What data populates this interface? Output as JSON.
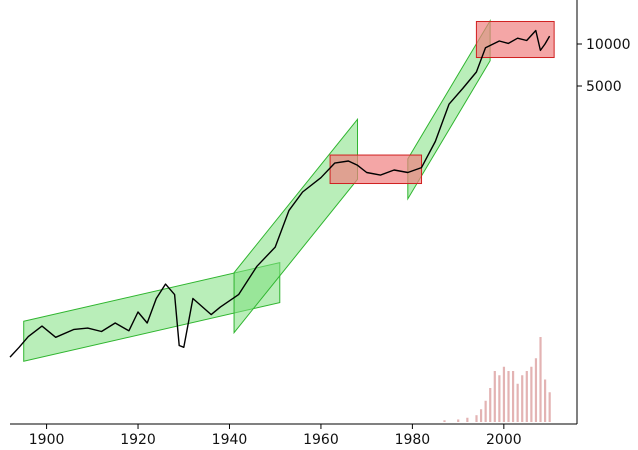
{
  "chart_data": {
    "type": "line",
    "title": "",
    "xlabel": "",
    "ylabel": "",
    "xlim": [
      1892,
      2016
    ],
    "x_ticks": [
      1900,
      1920,
      1940,
      1960,
      1980,
      2000
    ],
    "y_ticks": [
      {
        "label": "10000",
        "value": 10000
      },
      {
        "label": "5000",
        "value": 5000
      }
    ],
    "grid": false,
    "legend": "none",
    "colors": {
      "line": "#000000",
      "uptrend_fill": "#7fe07f",
      "uptrend_edge": "#2fb52f",
      "sideways_fill": "#f08080",
      "sideways_edge": "#d02020",
      "volume": "#e3b3b3",
      "axis": "#000000"
    },
    "series": [
      {
        "values": [
          [
            1892,
            57
          ],
          [
            1894,
            67
          ],
          [
            1896,
            80
          ],
          [
            1899,
            95
          ],
          [
            1902,
            79
          ],
          [
            1906,
            90
          ],
          [
            1909,
            92
          ],
          [
            1912,
            87
          ],
          [
            1915,
            100
          ],
          [
            1918,
            88
          ],
          [
            1920,
            120
          ],
          [
            1922,
            100
          ],
          [
            1924,
            150
          ],
          [
            1926,
            190
          ],
          [
            1928,
            160
          ],
          [
            1929,
            69
          ],
          [
            1930,
            67
          ],
          [
            1932,
            150
          ],
          [
            1936,
            115
          ],
          [
            1938,
            130
          ],
          [
            1942,
            160
          ],
          [
            1946,
            255
          ],
          [
            1950,
            350
          ],
          [
            1953,
            640
          ],
          [
            1956,
            870
          ],
          [
            1960,
            1100
          ],
          [
            1963,
            1400
          ],
          [
            1966,
            1450
          ],
          [
            1968,
            1350
          ],
          [
            1970,
            1200
          ],
          [
            1973,
            1150
          ],
          [
            1976,
            1250
          ],
          [
            1979,
            1200
          ],
          [
            1982,
            1300
          ],
          [
            1985,
            2000
          ],
          [
            1988,
            3700
          ],
          [
            1991,
            4800
          ],
          [
            1994,
            6300
          ],
          [
            1996,
            9400
          ],
          [
            1999,
            10500
          ],
          [
            2001,
            10100
          ],
          [
            2003,
            11000
          ],
          [
            2005,
            10600
          ],
          [
            2007,
            12500
          ],
          [
            2008,
            9000
          ],
          [
            2009,
            10000
          ],
          [
            2010,
            11400
          ]
        ]
      }
    ],
    "uptrend_channels": [
      {
        "start": [
          1895,
          74
        ],
        "end": [
          1951,
          195
        ],
        "width": 40
      },
      {
        "start": [
          1941,
          140
        ],
        "end": [
          1968,
          1760
        ],
        "width": 60
      },
      {
        "start": [
          1979,
          1080
        ],
        "end": [
          1997,
          10550
        ],
        "width": 40
      }
    ],
    "sideways_boxes": [
      {
        "x": [
          1962,
          1982
        ],
        "y": [
          1000,
          1600
        ]
      },
      {
        "x": [
          1994,
          2011
        ],
        "y": [
          8000,
          14500
        ]
      }
    ],
    "volume_bars": [
      [
        1987,
        0.02
      ],
      [
        1990,
        0.03
      ],
      [
        1992,
        0.05
      ],
      [
        1994,
        0.08
      ],
      [
        1995,
        0.15
      ],
      [
        1996,
        0.25
      ],
      [
        1997,
        0.4
      ],
      [
        1998,
        0.6
      ],
      [
        1999,
        0.55
      ],
      [
        2000,
        0.65
      ],
      [
        2001,
        0.6
      ],
      [
        2002,
        0.6
      ],
      [
        2003,
        0.45
      ],
      [
        2004,
        0.55
      ],
      [
        2005,
        0.6
      ],
      [
        2006,
        0.65
      ],
      [
        2007,
        0.75
      ],
      [
        2008,
        1.0
      ],
      [
        2009,
        0.5
      ],
      [
        2010,
        0.35
      ]
    ]
  }
}
